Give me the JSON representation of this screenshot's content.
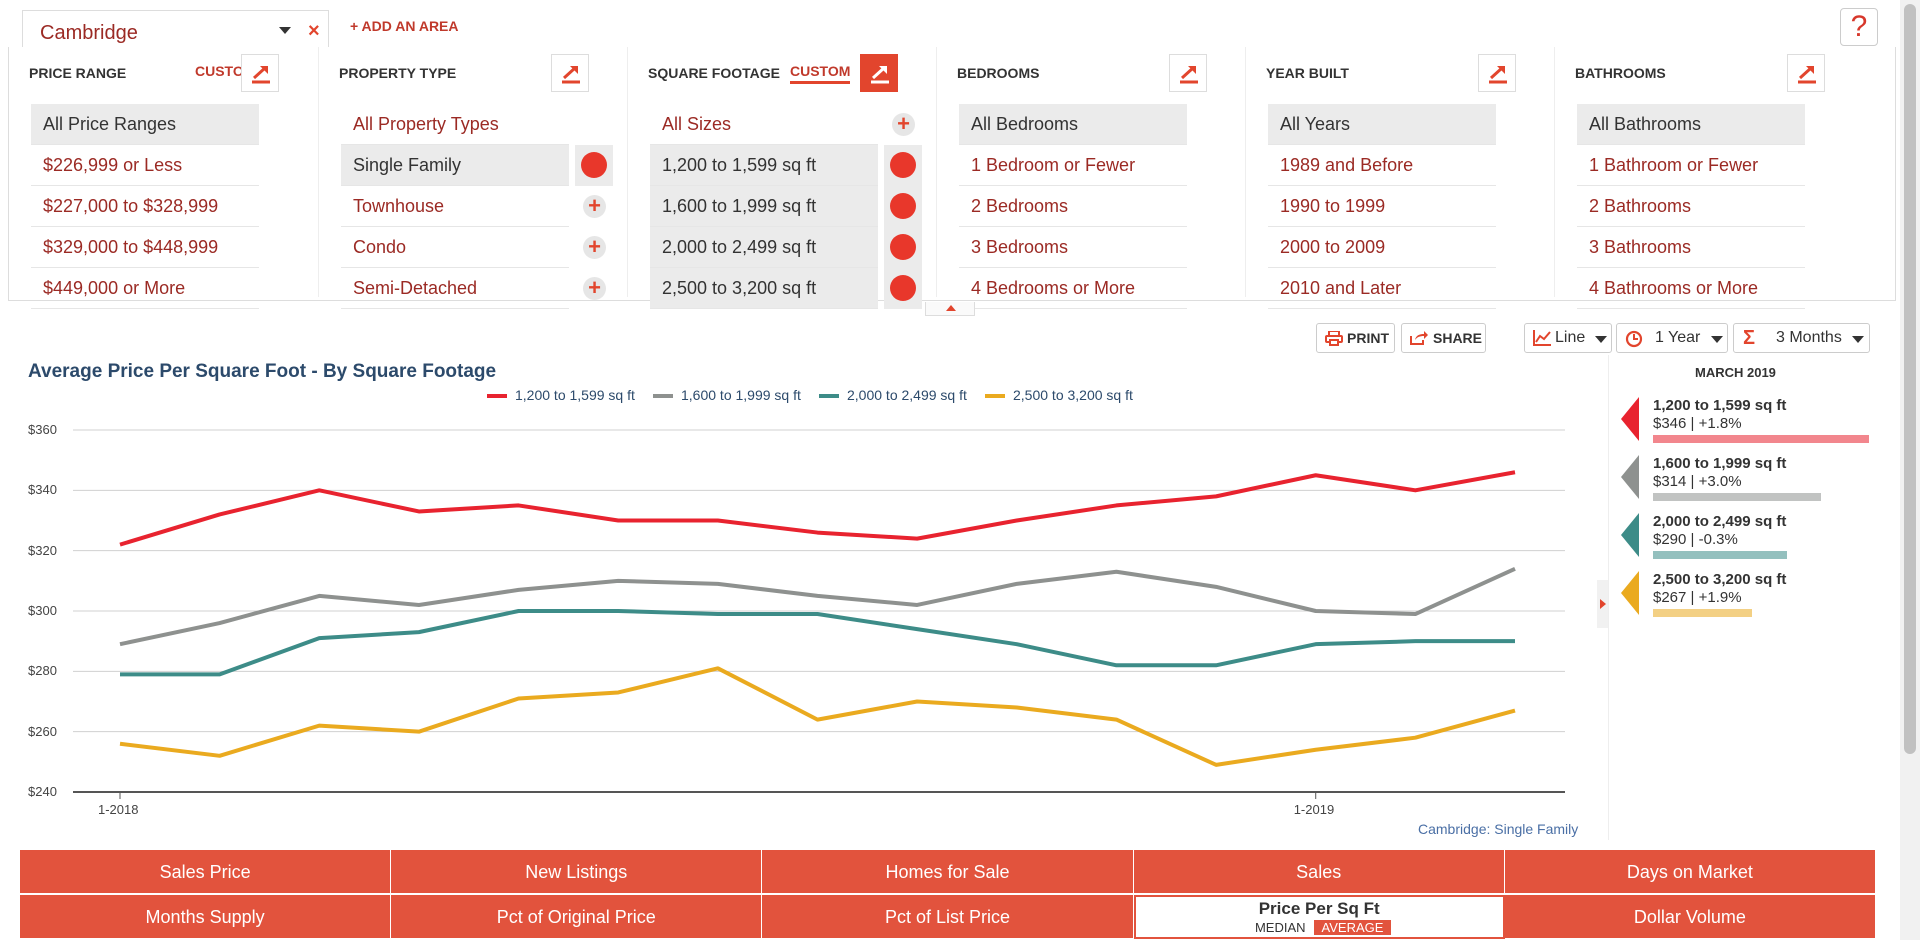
{
  "area": {
    "name": "Cambridge",
    "add_label": "+ ADD AN AREA",
    "close": "×",
    "help": "?"
  },
  "filters": [
    {
      "title": "PRICE RANGE",
      "custom": "CUSTOM",
      "custom_underlined": false,
      "edit_active": false,
      "items": [
        {
          "label": "All Price Ranges",
          "selected": true
        },
        {
          "label": "$226,999 or Less"
        },
        {
          "label": "$227,000 to $328,999"
        },
        {
          "label": "$329,000 to $448,999"
        },
        {
          "label": "$449,000 or More"
        }
      ]
    },
    {
      "title": "PROPERTY TYPE",
      "custom": "",
      "edit_active": false,
      "items": [
        {
          "label": "All Property Types"
        },
        {
          "label": "Single Family",
          "selected": true,
          "toggle": "on"
        },
        {
          "label": "Townhouse",
          "toggle": "plus"
        },
        {
          "label": "Condo",
          "toggle": "plus"
        },
        {
          "label": "Semi-Detached",
          "toggle": "plus"
        }
      ]
    },
    {
      "title": "SQUARE FOOTAGE",
      "custom": "CUSTOM",
      "custom_underlined": true,
      "edit_active": true,
      "items": [
        {
          "label": "All Sizes",
          "toggle": "plus"
        },
        {
          "label": "1,200 to 1,599 sq ft",
          "selected": true,
          "toggle": "on"
        },
        {
          "label": "1,600 to 1,999 sq ft",
          "selected": true,
          "toggle": "on"
        },
        {
          "label": "2,000 to 2,499 sq ft",
          "selected": true,
          "toggle": "on"
        },
        {
          "label": "2,500 to 3,200 sq ft",
          "selected": true,
          "toggle": "on"
        }
      ]
    },
    {
      "title": "BEDROOMS",
      "custom": "",
      "edit_active": false,
      "items": [
        {
          "label": "All Bedrooms",
          "selected": true
        },
        {
          "label": "1 Bedroom or Fewer"
        },
        {
          "label": "2 Bedrooms"
        },
        {
          "label": "3 Bedrooms"
        },
        {
          "label": "4 Bedrooms or More"
        }
      ]
    },
    {
      "title": "YEAR BUILT",
      "custom": "",
      "edit_active": false,
      "items": [
        {
          "label": "All Years",
          "selected": true
        },
        {
          "label": "1989 and Before"
        },
        {
          "label": "1990 to 1999"
        },
        {
          "label": "2000 to 2009"
        },
        {
          "label": "2010 and Later"
        }
      ]
    },
    {
      "title": "BATHROOMS",
      "custom": "",
      "edit_active": false,
      "items": [
        {
          "label": "All Bathrooms",
          "selected": true
        },
        {
          "label": "1 Bathroom or Fewer"
        },
        {
          "label": "2 Bathrooms"
        },
        {
          "label": "3 Bathrooms"
        },
        {
          "label": "4 Bathrooms or More"
        }
      ]
    }
  ],
  "toolbar": {
    "print": "PRINT",
    "share": "SHARE",
    "chart_type": "Line",
    "period": "1 Year",
    "rolling": "3 Months"
  },
  "colors": {
    "accent": "#e2452d",
    "s1": "#e8232f",
    "s2": "#8e918f",
    "s3": "#3d8c88",
    "s4": "#eaaa1f"
  },
  "chart_data": {
    "type": "line",
    "title": "Average Price Per Square Foot - By Square Footage",
    "x": [
      "1-2018",
      "2-2018",
      "3-2018",
      "4-2018",
      "5-2018",
      "6-2018",
      "7-2018",
      "8-2018",
      "9-2018",
      "10-2018",
      "11-2018",
      "12-2018",
      "1-2019",
      "2-2019",
      "3-2019"
    ],
    "x_tick_labels": [
      "1-2018",
      "1-2019"
    ],
    "ylim": [
      240,
      360
    ],
    "y_ticks": [
      240,
      260,
      280,
      300,
      320,
      340,
      360
    ],
    "y_tick_labels": [
      "$240",
      "$260",
      "$280",
      "$300",
      "$320",
      "$340",
      "$360"
    ],
    "grid": true,
    "legend": "top-center",
    "series": [
      {
        "name": "1,200 to 1,599 sq ft",
        "values": [
          322,
          332,
          340,
          333,
          335,
          330,
          330,
          326,
          324,
          330,
          335,
          338,
          345,
          340,
          346
        ]
      },
      {
        "name": "1,600 to 1,999 sq ft",
        "values": [
          289,
          296,
          305,
          302,
          307,
          310,
          309,
          305,
          302,
          309,
          313,
          308,
          300,
          299,
          314
        ]
      },
      {
        "name": "2,000 to 2,499 sq ft",
        "values": [
          279,
          279,
          291,
          293,
          300,
          300,
          299,
          299,
          294,
          289,
          282,
          282,
          289,
          290,
          290
        ]
      },
      {
        "name": "2,500 to 3,200 sq ft",
        "values": [
          256,
          252,
          262,
          260,
          271,
          273,
          281,
          264,
          270,
          268,
          264,
          249,
          254,
          258,
          267
        ]
      }
    ],
    "caption": "Cambridge: Single Family"
  },
  "side": {
    "date": "MARCH 2019",
    "items": [
      {
        "name": "1,200 to 1,599 sq ft",
        "value": "$346 | +1.8%",
        "fill": 1.0
      },
      {
        "name": "1,600 to 1,999 sq ft",
        "value": "$314 | +3.0%",
        "fill": 0.78
      },
      {
        "name": "2,000 to 2,499 sq ft",
        "value": "$290 | -0.3%",
        "fill": 0.62
      },
      {
        "name": "2,500 to 3,200 sq ft",
        "value": "$267 | +1.9%",
        "fill": 0.46
      }
    ]
  },
  "metrics": {
    "row1": [
      "Sales Price",
      "New Listings",
      "Homes for Sale",
      "Sales",
      "Days on Market"
    ],
    "row2": [
      "Months Supply",
      "Pct of Original Price",
      "Pct of List Price",
      "Price Per Sq Ft",
      "Dollar Volume"
    ],
    "active_sub": [
      "MEDIAN",
      "AVERAGE"
    ]
  }
}
